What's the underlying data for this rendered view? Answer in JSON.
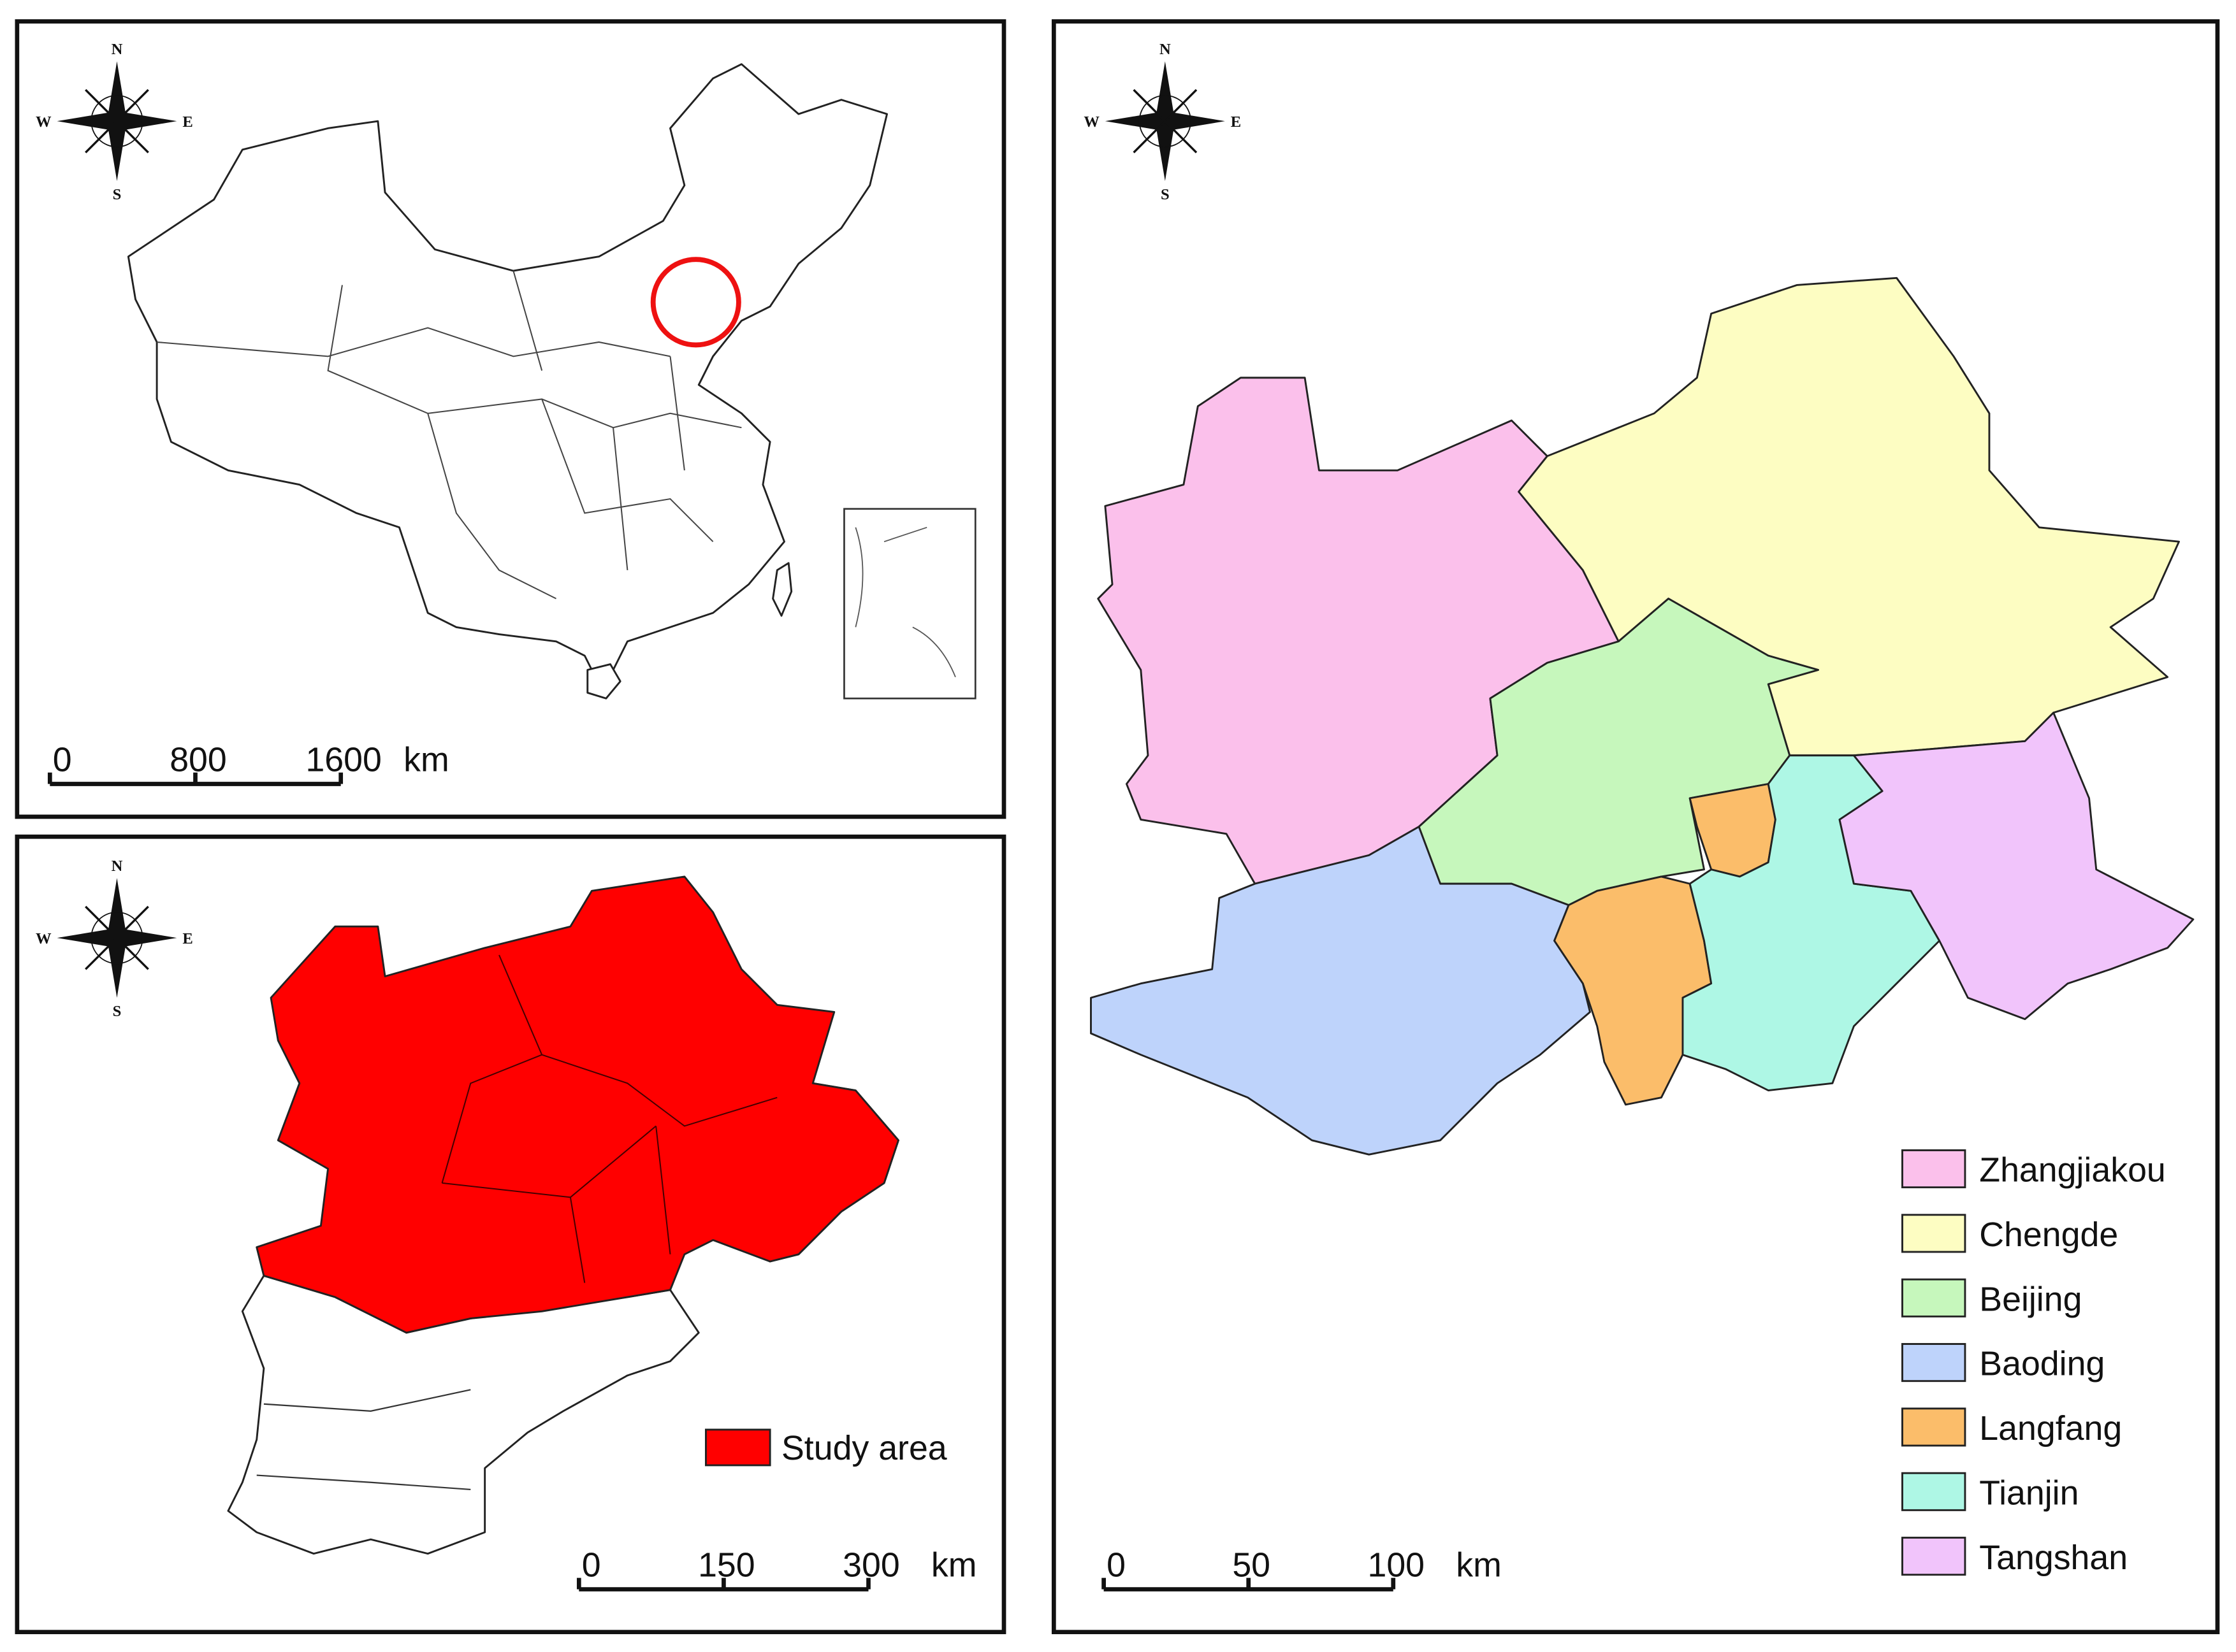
{
  "compass": {
    "n": "N",
    "s": "S",
    "w": "W",
    "e": "E"
  },
  "china_map": {
    "scale": {
      "ticks": [
        0,
        800,
        1600
      ],
      "unit": "km"
    }
  },
  "region_map": {
    "legend": {
      "label": "Study area",
      "color": "#ff0000"
    },
    "scale": {
      "ticks": [
        0,
        150,
        300
      ],
      "unit": "km"
    }
  },
  "city_map": {
    "legend": [
      {
        "name": "Zhangjiakou",
        "color": "#fbc0eb"
      },
      {
        "name": "Chengde",
        "color": "#fdfdc2"
      },
      {
        "name": "Beijing",
        "color": "#c6f7bc"
      },
      {
        "name": "Baoding",
        "color": "#bed3fb"
      },
      {
        "name": "Langfang",
        "color": "#fbbd6a"
      },
      {
        "name": "Tianjin",
        "color": "#aef7e5"
      },
      {
        "name": "Tangshan",
        "color": "#f1c4fb"
      }
    ],
    "scale": {
      "ticks": [
        0,
        50,
        100
      ],
      "unit": "km"
    }
  }
}
